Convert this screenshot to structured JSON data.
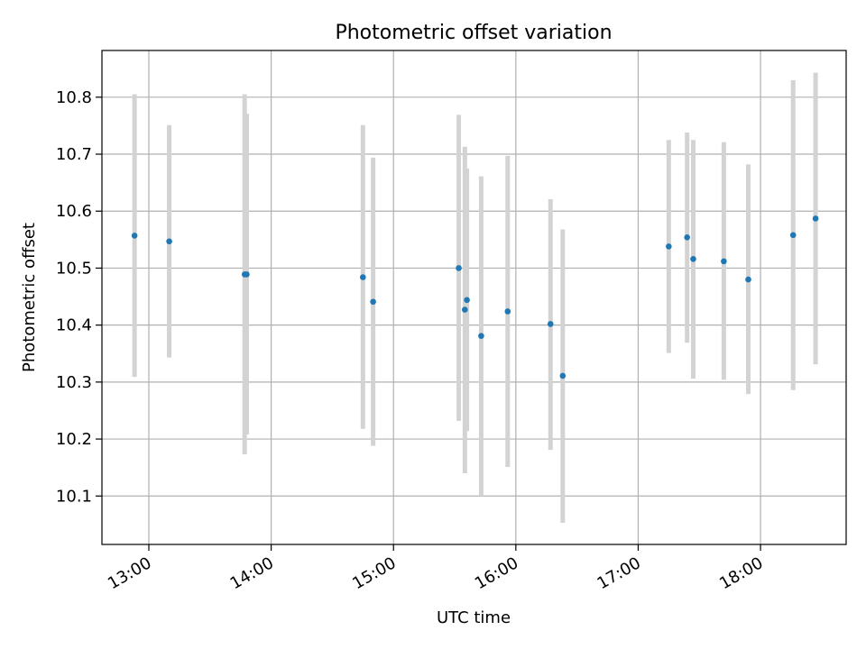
{
  "chart_data": {
    "type": "scatter",
    "title": "Photometric offset variation",
    "xlabel": "UTC time",
    "ylabel": "Photometric offset",
    "x_ticks": [
      "13:00",
      "14:00",
      "15:00",
      "16:00",
      "17:00",
      "18:00"
    ],
    "y_ticks": [
      "10.1",
      "10.2",
      "10.3",
      "10.4",
      "10.5",
      "10.6",
      "10.7",
      "10.8"
    ],
    "xlim": [
      "12:37",
      "18:42"
    ],
    "ylim": [
      10.015,
      10.882
    ],
    "grid": true,
    "colors": {
      "point": "#1f77b4",
      "errorbar": "#d3d3d3",
      "grid": "#b0b0b0"
    },
    "points": [
      {
        "x": "12:53",
        "y": 10.557,
        "lo": 10.309,
        "hi": 10.805
      },
      {
        "x": "13:10",
        "y": 10.547,
        "lo": 10.343,
        "hi": 10.751
      },
      {
        "x": "13:47",
        "y": 10.489,
        "lo": 10.173,
        "hi": 10.805
      },
      {
        "x": "13:48",
        "y": 10.489,
        "lo": 10.208,
        "hi": 10.771
      },
      {
        "x": "14:45",
        "y": 10.484,
        "lo": 10.218,
        "hi": 10.751
      },
      {
        "x": "14:50",
        "y": 10.441,
        "lo": 10.188,
        "hi": 10.694
      },
      {
        "x": "15:32",
        "y": 10.5,
        "lo": 10.232,
        "hi": 10.769
      },
      {
        "x": "15:35",
        "y": 10.427,
        "lo": 10.14,
        "hi": 10.713
      },
      {
        "x": "15:36",
        "y": 10.444,
        "lo": 10.214,
        "hi": 10.675
      },
      {
        "x": "15:43",
        "y": 10.381,
        "lo": 10.1,
        "hi": 10.661
      },
      {
        "x": "15:56",
        "y": 10.424,
        "lo": 10.151,
        "hi": 10.697
      },
      {
        "x": "16:17",
        "y": 10.402,
        "lo": 10.181,
        "hi": 10.621
      },
      {
        "x": "16:23",
        "y": 10.311,
        "lo": 10.053,
        "hi": 10.568
      },
      {
        "x": "17:15",
        "y": 10.538,
        "lo": 10.351,
        "hi": 10.725
      },
      {
        "x": "17:24",
        "y": 10.554,
        "lo": 10.369,
        "hi": 10.738
      },
      {
        "x": "17:27",
        "y": 10.516,
        "lo": 10.306,
        "hi": 10.725
      },
      {
        "x": "17:42",
        "y": 10.512,
        "lo": 10.304,
        "hi": 10.721
      },
      {
        "x": "17:54",
        "y": 10.48,
        "lo": 10.279,
        "hi": 10.682
      },
      {
        "x": "18:16",
        "y": 10.558,
        "lo": 10.286,
        "hi": 10.83
      },
      {
        "x": "18:27",
        "y": 10.587,
        "lo": 10.331,
        "hi": 10.843
      }
    ]
  }
}
